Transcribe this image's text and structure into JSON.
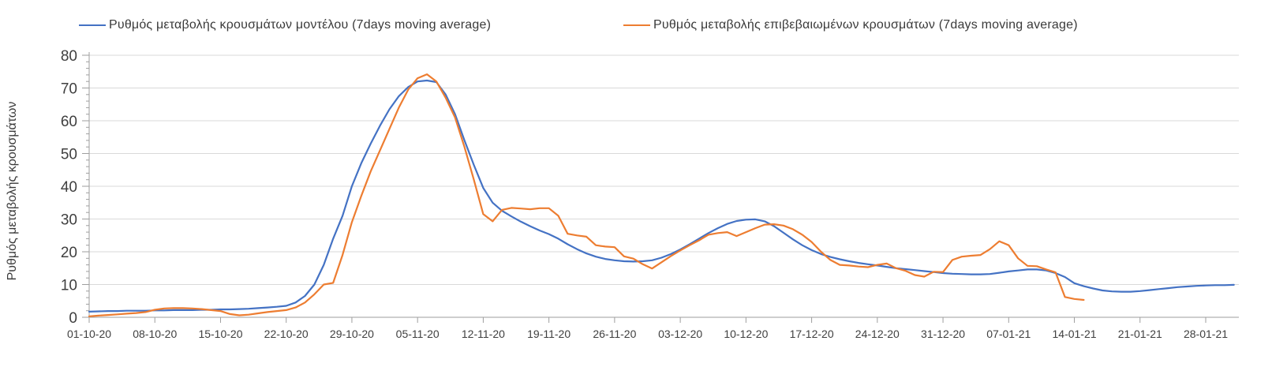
{
  "colors": {
    "background": "#ffffff",
    "gridline": "#d9d9d9",
    "axis": "#9e9e9e",
    "tick_label": "#3f3f3f",
    "legend_text": "#3a3a3a",
    "series_model": "#4472c4",
    "series_confirmed": "#ed7d31"
  },
  "chart_data": {
    "type": "line",
    "title": "",
    "xlabel": "",
    "ylabel": "Ρυθμός μεταβολής κρουσμάτων",
    "ylim": [
      0,
      80
    ],
    "y_tick_step": 10,
    "y_minor_tick_step": 2,
    "y_tick_labels": [
      "0",
      "10",
      "20",
      "30",
      "40",
      "50",
      "60",
      "70",
      "80"
    ],
    "grid": "horizontal-major",
    "legend_position": "top",
    "x_tick_labels": [
      "01-10-20",
      "08-10-20",
      "15-10-20",
      "22-10-20",
      "29-10-20",
      "05-11-20",
      "12-11-20",
      "19-11-20",
      "26-11-20",
      "03-12-20",
      "10-12-20",
      "17-12-20",
      "24-12-20",
      "31-12-20",
      "07-01-21",
      "14-01-21",
      "21-01-21",
      "28-01-21"
    ],
    "x_tick_every_days": 7,
    "x_resolution": "daily",
    "series": [
      {
        "name": "Ρυθμός μεταβολής κρουσμάτων μοντέλου (7days moving average)",
        "color": "#4472c4",
        "values": [
          1.7,
          1.8,
          1.9,
          1.9,
          2.0,
          2.0,
          2.0,
          2.1,
          2.1,
          2.2,
          2.2,
          2.2,
          2.3,
          2.3,
          2.4,
          2.4,
          2.5,
          2.6,
          2.8,
          3.0,
          3.2,
          3.5,
          4.5,
          6.5,
          10.0,
          16.0,
          24.0,
          31.0,
          40.0,
          47.0,
          53.0,
          58.5,
          63.5,
          67.5,
          70.3,
          72.0,
          72.3,
          71.8,
          68.0,
          62.0,
          54.0,
          46.5,
          39.5,
          35.0,
          32.5,
          30.8,
          29.2,
          27.8,
          26.5,
          25.4,
          24.0,
          22.3,
          20.8,
          19.5,
          18.5,
          17.8,
          17.4,
          17.1,
          17.0,
          17.1,
          17.4,
          18.2,
          19.3,
          20.7,
          22.3,
          24.0,
          25.7,
          27.2,
          28.5,
          29.4,
          29.8,
          29.9,
          29.3,
          27.8,
          25.8,
          23.8,
          22.0,
          20.5,
          19.3,
          18.4,
          17.7,
          17.1,
          16.6,
          16.2,
          15.8,
          15.4,
          15.0,
          14.7,
          14.4,
          14.1,
          13.8,
          13.5,
          13.3,
          13.2,
          13.1,
          13.1,
          13.2,
          13.6,
          14.0,
          14.3,
          14.6,
          14.6,
          14.3,
          13.5,
          12.3,
          10.4,
          9.5,
          8.8,
          8.2,
          7.9,
          7.8,
          7.8,
          8.0,
          8.3,
          8.6,
          8.9,
          9.2,
          9.4,
          9.6,
          9.7,
          9.8,
          9.8,
          9.9
        ]
      },
      {
        "name": "Ρυθμός μεταβολής επιβεβαιωμένων κρουσμάτων (7days moving average)",
        "color": "#ed7d31",
        "values": [
          0.3,
          0.5,
          0.7,
          0.9,
          1.1,
          1.3,
          1.6,
          2.3,
          2.7,
          2.8,
          2.8,
          2.7,
          2.5,
          2.2,
          1.9,
          1.0,
          0.6,
          0.8,
          1.2,
          1.6,
          1.9,
          2.2,
          3.0,
          4.5,
          7.0,
          10.0,
          10.5,
          19.0,
          29.0,
          37.0,
          44.5,
          51.0,
          57.5,
          64.0,
          69.5,
          73.0,
          74.2,
          72.0,
          67.0,
          61.0,
          52.0,
          42.0,
          31.5,
          29.3,
          32.8,
          33.4,
          33.2,
          33.0,
          33.3,
          33.3,
          31.0,
          25.5,
          25.0,
          24.6,
          22.0,
          21.6,
          21.4,
          18.6,
          17.9,
          16.2,
          14.9,
          16.8,
          18.7,
          20.4,
          22.0,
          23.5,
          25.2,
          25.7,
          26.0,
          24.8,
          26.0,
          27.2,
          28.3,
          28.4,
          28.0,
          26.9,
          25.2,
          23.0,
          20.0,
          17.5,
          16.0,
          15.8,
          15.5,
          15.3,
          16.0,
          16.4,
          15.0,
          14.2,
          12.9,
          12.4,
          13.9,
          13.8,
          17.5,
          18.5,
          18.8,
          19.0,
          20.8,
          23.2,
          22.0,
          18.0,
          15.7,
          15.6,
          14.6,
          13.7,
          6.2,
          5.6,
          5.3
        ]
      }
    ]
  }
}
